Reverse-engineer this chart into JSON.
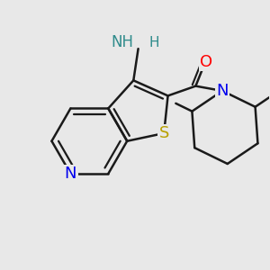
{
  "bg_color": "#e8e8e8",
  "bond_color": "#1a1a1a",
  "bond_width": 1.8,
  "atom_colors": {
    "N_blue": "#0000ee",
    "N_teal": "#2e8b8b",
    "S": "#b8a000",
    "O": "#ff0000"
  },
  "xlim": [
    -2.0,
    2.4
  ],
  "ylim": [
    -2.2,
    1.9
  ],
  "L": 0.62
}
